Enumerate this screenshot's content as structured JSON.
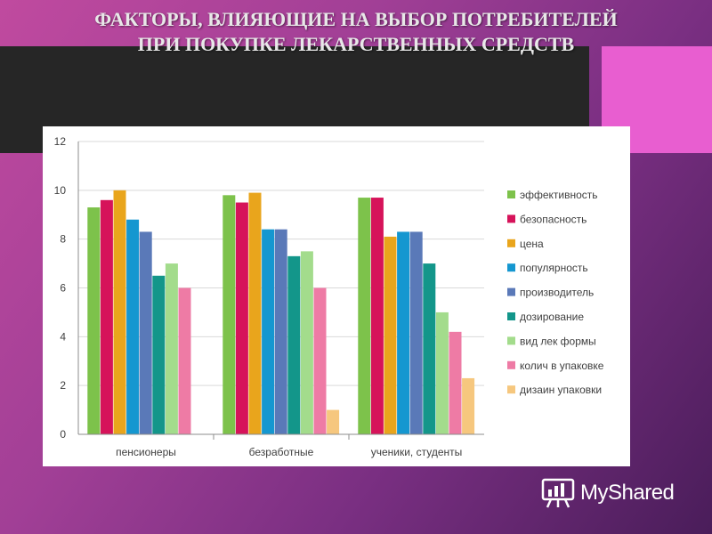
{
  "slide": {
    "title_line1": "ФАКТОРЫ, ВЛИЯЮЩИЕ НА ВЫБОР ПОТРЕБИТЕЛЕЙ",
    "title_line2": "ПРИ ПОКУПКЕ ЛЕКАРСТВЕННЫХ СРЕДСТВ",
    "title_color": "#e8e8e8",
    "band_color": "#262626",
    "accent_color": "#e85ed0"
  },
  "watermark": {
    "text": "MyShared",
    "icon": "presentation-board-icon"
  },
  "chart_data": {
    "type": "bar",
    "title": "",
    "xlabel": "",
    "ylabel": "",
    "ylim": [
      0,
      12
    ],
    "yticks": [
      0,
      2,
      4,
      6,
      8,
      10,
      12
    ],
    "grid": true,
    "legend_position": "right",
    "categories": [
      "пенсионеры",
      "безработные",
      "ученики, студенты"
    ],
    "series": [
      {
        "name": "эффективность",
        "color": "#7dc24b",
        "values": [
          9.3,
          9.8,
          9.7
        ]
      },
      {
        "name": "безопасность",
        "color": "#d6135a",
        "values": [
          9.6,
          9.5,
          9.7
        ]
      },
      {
        "name": "цена",
        "color": "#e9a51c",
        "values": [
          10.0,
          9.9,
          8.1
        ]
      },
      {
        "name": "популярность",
        "color": "#1597d0",
        "values": [
          8.8,
          8.4,
          8.3
        ]
      },
      {
        "name": "производитель",
        "color": "#5a79b8",
        "values": [
          8.3,
          8.4,
          8.3
        ]
      },
      {
        "name": "дозирование",
        "color": "#13968a",
        "values": [
          6.5,
          7.3,
          7.0
        ]
      },
      {
        "name": "вид лек формы",
        "color": "#a3dc8c",
        "values": [
          7.0,
          7.5,
          5.0
        ]
      },
      {
        "name": "колич в упаковке",
        "color": "#ee7ba5",
        "values": [
          6.0,
          6.0,
          4.2
        ]
      },
      {
        "name": "дизаин упаковки",
        "color": "#f6c77e",
        "values": [
          0,
          1.0,
          2.3
        ]
      }
    ]
  }
}
